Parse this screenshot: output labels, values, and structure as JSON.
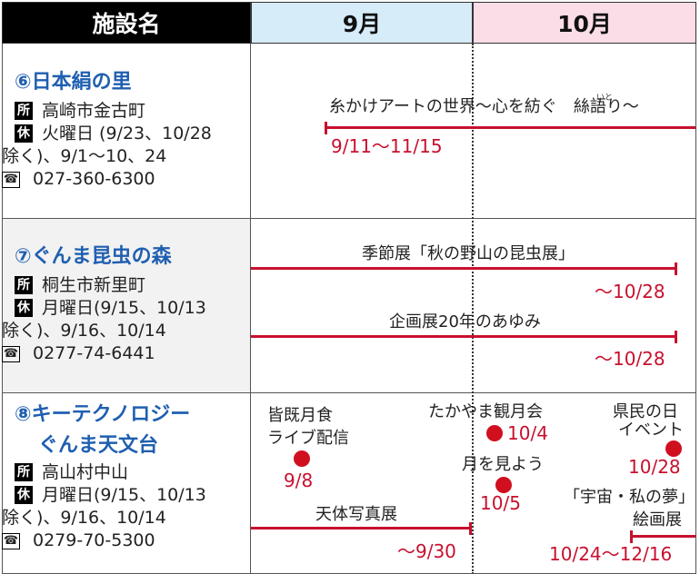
{
  "header": {
    "name_col": "施設名",
    "sep_col": "9月",
    "oct_col": "10月"
  },
  "facilities": [
    {
      "name": "⑥日本絹の里",
      "address_tag": "所",
      "address": "高崎市金古町",
      "closed_tag": "休",
      "closed_line1": "火曜日 (9/23、10/28",
      "closed_line2": "除く)、9/1〜10、24",
      "tel_tag": "☎",
      "tel": "027-360-6300",
      "events": [
        {
          "title": "糸かけアートの世界〜心を紡ぐ　絲語り〜",
          "ruby": "いと",
          "date": "9/11〜11/15"
        }
      ]
    },
    {
      "name": "⑦ぐんま昆虫の森",
      "address_tag": "所",
      "address": "桐生市新里町",
      "closed_tag": "休",
      "closed_line1": "月曜日(9/15、10/13",
      "closed_line2": "除く)、9/16、10/14",
      "tel_tag": "☎",
      "tel": "0277-74-6441",
      "events": [
        {
          "title": "季節展「秋の野山の昆虫展」",
          "date": "〜10/28"
        },
        {
          "title": "企画展20年のあゆみ",
          "date": "〜10/28"
        }
      ]
    },
    {
      "name_line1": "⑧キーテクノロジー",
      "name_line2": "ぐんま天文台",
      "address_tag": "所",
      "address": "高山村中山",
      "closed_tag": "休",
      "closed_line1": "月曜日(9/15、10/13",
      "closed_line2": "除く)、9/16、10/14",
      "tel_tag": "☎",
      "tel": "0279-70-5300",
      "events": [
        {
          "title_line1": "皆既月食",
          "title_line2": "ライブ配信",
          "date": "9/8"
        },
        {
          "title": "たかやま観月会",
          "date": "10/4"
        },
        {
          "title_line1": "県民の日",
          "title_line2": "イベント",
          "date": "10/28"
        },
        {
          "title": "月を見よう",
          "date": "10/5"
        },
        {
          "title": "天体写真展",
          "date": "〜9/30"
        },
        {
          "title_line1": "「宇宙・私の夢」",
          "title_line2": "絵画展",
          "date": "10/24〜12/16"
        }
      ]
    }
  ],
  "colors": {
    "accent_red": "#c8102e",
    "name_blue": "#1f5fb0",
    "sep_bg": "#d6ecf8",
    "oct_bg": "#fbdde7"
  }
}
